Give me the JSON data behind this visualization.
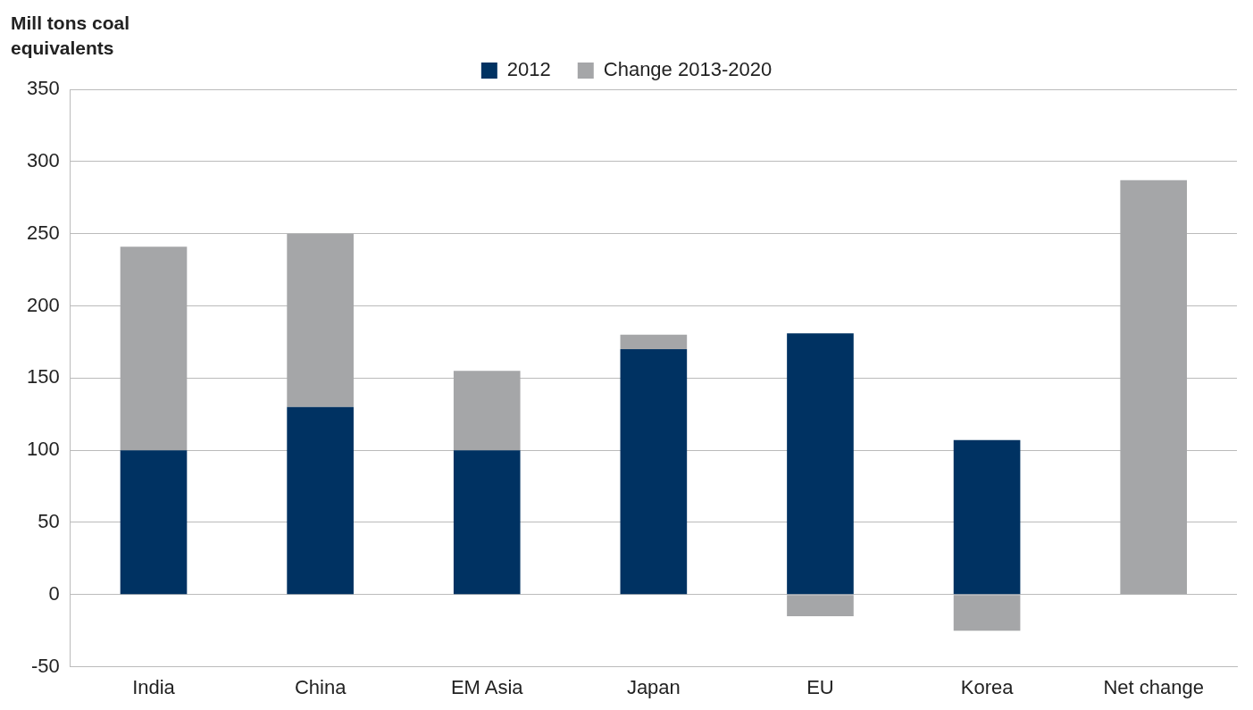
{
  "chart_data": {
    "type": "bar",
    "ylabel": "Mill tons coal equivalents",
    "categories": [
      "India",
      "China",
      "EM Asia",
      "Japan",
      "EU",
      "Korea",
      "Net change"
    ],
    "series": [
      {
        "name": "2012",
        "color": "#003262",
        "values": [
          100,
          130,
          100,
          170,
          181,
          107,
          null
        ]
      },
      {
        "name": "Change 2013-2020",
        "color": "#a5a6a8",
        "values": [
          141,
          120,
          55,
          10,
          -15,
          -25,
          287
        ]
      }
    ],
    "stacked": true,
    "ylim": [
      -50,
      350
    ],
    "yticks": [
      -50,
      0,
      50,
      100,
      150,
      200,
      250,
      300,
      350
    ],
    "grid": "y",
    "legend": "top"
  }
}
